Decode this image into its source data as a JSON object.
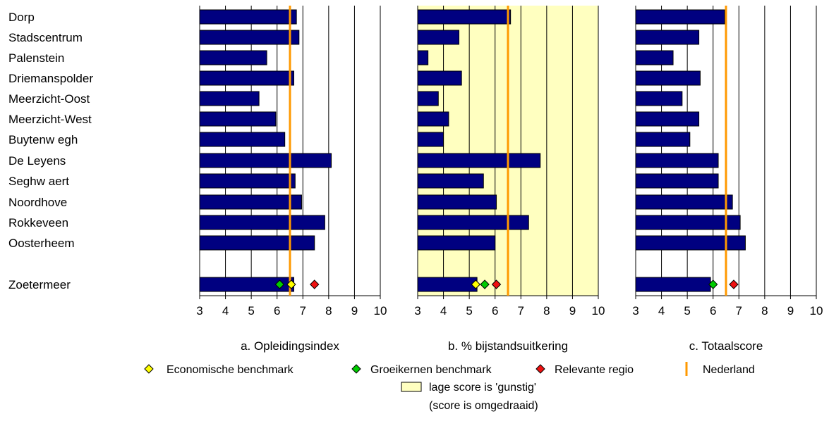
{
  "chart_data": {
    "type": "bar",
    "orientation": "horizontal",
    "categories": [
      "Dorp",
      "Stadscentrum",
      "Palenstein",
      "Driemanspolder",
      "Meerzicht-Oost",
      "Meerzicht-West",
      "Buytenw egh",
      "De Leyens",
      "Seghw aert",
      "Noordhove",
      "Rokkeveen",
      "Oosterheem",
      "Zoetermeer"
    ],
    "xlim": [
      3,
      10
    ],
    "xticks": [
      "3",
      "4",
      "5",
      "6",
      "7",
      "8",
      "9",
      "10"
    ],
    "reference_line": {
      "name": "Nederland",
      "value": 6.5,
      "color": "#ff9900"
    },
    "bar_color": "#000080",
    "panels": [
      {
        "title": "a. Opleidingsindex",
        "values": [
          6.75,
          6.85,
          5.6,
          6.65,
          5.3,
          5.95,
          6.3,
          8.1,
          6.7,
          6.95,
          7.85,
          7.45,
          6.65
        ],
        "benchmarks": {
          "economisch": 6.55,
          "groeikernen": 6.1,
          "relevante_regio": 7.45
        },
        "shaded": false
      },
      {
        "title": "b. % bijstandsuitkering",
        "values": [
          6.6,
          4.6,
          3.4,
          4.7,
          3.8,
          4.2,
          4.0,
          7.75,
          5.55,
          6.05,
          7.3,
          6.0,
          5.3
        ],
        "benchmarks": {
          "economisch": 5.25,
          "groeikernen": 5.6,
          "relevante_regio": 6.05
        },
        "shaded": true
      },
      {
        "title": "c. Totaalscore",
        "values": [
          6.45,
          5.45,
          4.45,
          5.5,
          4.8,
          5.45,
          5.1,
          6.2,
          6.2,
          6.75,
          7.05,
          7.25,
          5.9
        ],
        "benchmarks": {
          "economisch": null,
          "groeikernen": 6.0,
          "relevante_regio": 6.8
        },
        "shaded": false
      }
    ],
    "legend": {
      "economisch": {
        "label": "Economische benchmark",
        "color": "#ffff00"
      },
      "groeikernen": {
        "label": "Groeikernen benchmark",
        "color": "#00cc00"
      },
      "relevante_regio": {
        "label": "Relevante regio",
        "color": "#ee1111"
      },
      "nederland": {
        "label": "Nederland"
      },
      "shade": {
        "label": "lage score is 'gunstig'",
        "note": "(score is omgedraaid)",
        "color": "#ffffc0"
      }
    }
  }
}
